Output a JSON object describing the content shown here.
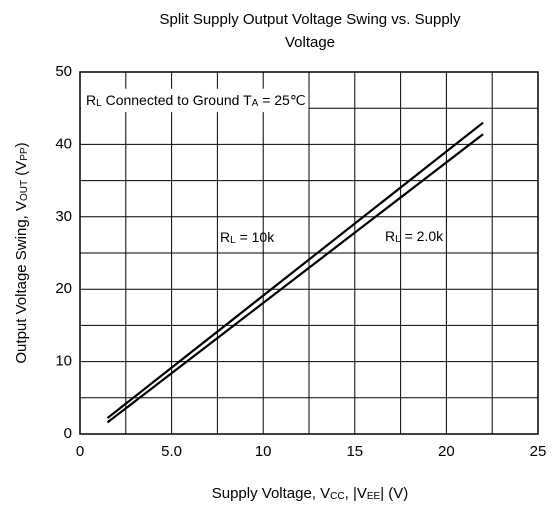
{
  "chart_data": {
    "type": "line",
    "title": [
      "Split Supply Output Voltage Swing vs. Supply",
      "Voltage"
    ],
    "x_label": [
      "Supply Voltage, V",
      {
        "sub": "CC"
      },
      ", |V",
      {
        "sub": "EE"
      },
      "| (V)"
    ],
    "y_label": [
      "Output Voltage Swing, V",
      {
        "sub": "OUT"
      },
      " (V",
      {
        "sub": "PP"
      },
      ")"
    ],
    "annotation": [
      "R",
      {
        "sub": "L"
      },
      " Connected to Ground T",
      {
        "sub": "A"
      },
      " = 25℃"
    ],
    "x": [
      1.5,
      22
    ],
    "series": [
      {
        "name": [
          "R",
          {
            "sub": "L"
          },
          " = 10k"
        ],
        "color": "#000000",
        "values": [
          2.2,
          43
        ]
      },
      {
        "name": [
          "R",
          {
            "sub": "L"
          },
          " = 2.0k"
        ],
        "color": "#000000",
        "values": [
          1.6,
          41.4
        ]
      }
    ],
    "xlim": [
      0,
      25
    ],
    "xticks": [
      0,
      {
        "value": 5,
        "label": "5.0"
      },
      10,
      15,
      20,
      25
    ],
    "x_minor_ticks": [
      2.5,
      7.5,
      12.5,
      17.5,
      22.5
    ],
    "ylim": [
      0,
      50
    ],
    "yticks": [
      0,
      10,
      20,
      30,
      40,
      50
    ],
    "y_minor_ticks": [
      5,
      15,
      25,
      35,
      45
    ],
    "grid": true
  }
}
